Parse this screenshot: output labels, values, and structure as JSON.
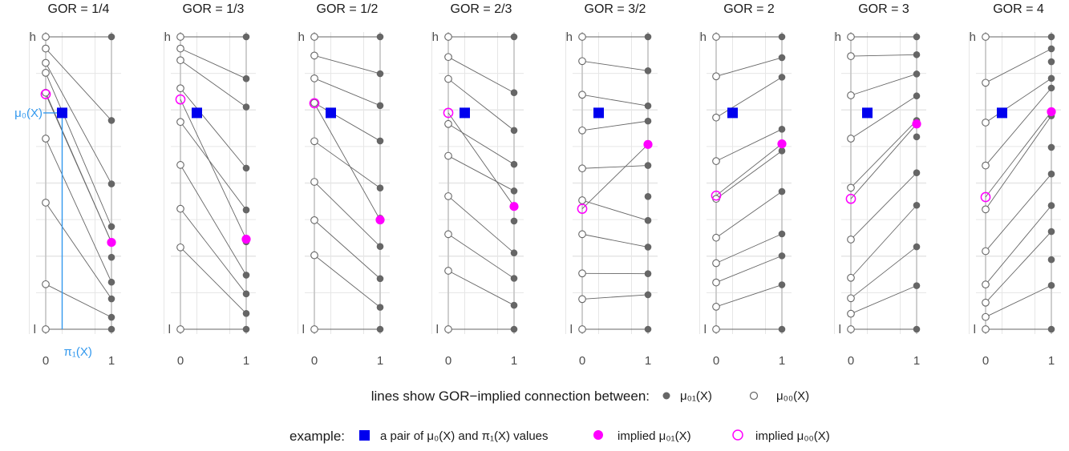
{
  "chart_data": {
    "type": "scatter",
    "x_ticks": [
      "0",
      "1"
    ],
    "y_ticks": [
      "h",
      "l"
    ],
    "panels": [
      {
        "title": "GOR = 1/4",
        "gor": 0.25,
        "mu00": [
          0,
          0.154,
          0.433,
          0.652,
          0.809,
          0.877,
          0.911,
          0.96,
          1.0
        ],
        "mu01": [
          0,
          0.041,
          0.104,
          0.161,
          0.246,
          0.297,
          0.351,
          0.497,
          0.714,
          1.0
        ],
        "example": {
          "mu0": 0.74,
          "pi1": 0.25,
          "implied_mu01": 0.297,
          "implied_mu00": 0.804
        }
      },
      {
        "title": "GOR = 1/3",
        "gor": 0.333,
        "mu00": [
          0,
          0.28,
          0.412,
          0.562,
          0.709,
          0.824,
          0.92,
          0.96,
          1.0
        ],
        "mu01": [
          0,
          0.054,
          0.121,
          0.185,
          0.299,
          0.408,
          0.551,
          0.76,
          0.857,
          1.0
        ],
        "example": {
          "mu0": 0.74,
          "pi1": 0.25,
          "implied_mu01": 0.308,
          "implied_mu00": 0.786
        }
      },
      {
        "title": "GOR = 1/2",
        "gor": 0.5,
        "mu00": [
          0,
          0.253,
          0.373,
          0.504,
          0.643,
          0.774,
          0.858,
          0.936,
          1.0
        ],
        "mu01": [
          0,
          0.075,
          0.173,
          0.283,
          0.38,
          0.483,
          0.644,
          0.765,
          0.874,
          1.0
        ],
        "example": {
          "mu0": 0.74,
          "pi1": 0.25,
          "implied_mu01": 0.374,
          "implied_mu00": 0.773
        }
      },
      {
        "title": "GOR = 2/3",
        "gor": 0.667,
        "mu00": [
          0,
          0.2,
          0.325,
          0.455,
          0.593,
          0.702,
          0.856,
          0.931,
          1.0
        ],
        "mu01": [
          0,
          0.082,
          0.174,
          0.261,
          0.37,
          0.473,
          0.564,
          0.68,
          0.809,
          1.0
        ],
        "example": {
          "mu0": 0.74,
          "pi1": 0.25,
          "implied_mu01": 0.42,
          "implied_mu00": 0.74
        }
      },
      {
        "title": "GOR = 3/2",
        "gor": 1.5,
        "mu00": [
          0,
          0.103,
          0.191,
          0.325,
          0.441,
          0.55,
          0.68,
          0.802,
          0.917,
          1.0
        ],
        "mu01": [
          0,
          0.118,
          0.19,
          0.281,
          0.372,
          0.454,
          0.56,
          0.712,
          0.764,
          0.884,
          1.0
        ],
        "example": {
          "mu0": 0.74,
          "pi1": 0.25,
          "implied_mu01": 0.632,
          "implied_mu00": 0.412
        }
      },
      {
        "title": "GOR = 2",
        "gor": 2.0,
        "mu00": [
          0,
          0.077,
          0.16,
          0.226,
          0.313,
          0.446,
          0.575,
          0.724,
          0.865,
          1.0
        ],
        "mu01": [
          0,
          0.152,
          0.251,
          0.326,
          0.471,
          0.61,
          0.684,
          0.862,
          0.929,
          1.0
        ],
        "example": {
          "mu0": 0.74,
          "pi1": 0.25,
          "implied_mu01": 0.634,
          "implied_mu00": 0.457
        }
      },
      {
        "title": "GOR = 3",
        "gor": 3.0,
        "mu00": [
          0,
          0.053,
          0.106,
          0.176,
          0.307,
          0.484,
          0.652,
          0.8,
          0.934,
          1.0
        ],
        "mu01": [
          0,
          0.149,
          0.282,
          0.424,
          0.535,
          0.658,
          0.714,
          0.798,
          0.873,
          0.939,
          1.0
        ],
        "example": {
          "mu0": 0.74,
          "pi1": 0.25,
          "implied_mu01": 0.702,
          "implied_mu00": 0.446
        }
      },
      {
        "title": "GOR = 4",
        "gor": 4.0,
        "mu00": [
          0,
          0.042,
          0.091,
          0.153,
          0.267,
          0.41,
          0.56,
          0.707,
          0.843,
          1.0
        ],
        "mu01": [
          0,
          0.15,
          0.238,
          0.334,
          0.423,
          0.531,
          0.622,
          0.73,
          0.825,
          0.858,
          0.915,
          0.959,
          1.0
        ],
        "example": {
          "mu0": 0.74,
          "pi1": 0.25,
          "implied_mu01": 0.744,
          "implied_mu00": 0.452
        }
      }
    ],
    "annotations": {
      "mu0_label": "μ₀(X)",
      "pi1_label": "π₁(X)"
    },
    "legend": {
      "row1": {
        "label": "lines show GOR−implied connection between:",
        "filled_label": "μ₀₁(X)",
        "open_label": "μ₀₀(X)"
      },
      "row2": {
        "label": "example:",
        "square_label": "a pair of μ₀(X) and π₁(X) values",
        "filled_label": "implied μ₀₁(X)",
        "open_label": "implied μ₀₀(X)"
      }
    },
    "colors": {
      "points": "#666666",
      "lines": "#666666",
      "example_square": "#0000ee",
      "implied": "#ff00ff",
      "annotation": "#3399ee",
      "grid": "#e6e6e6",
      "axis_gridline": "#c8c8c8"
    }
  }
}
